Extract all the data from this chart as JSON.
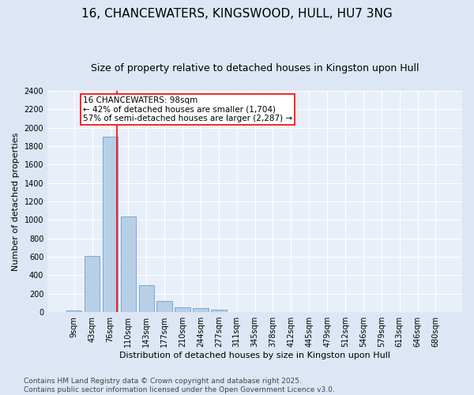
{
  "title": "16, CHANCEWATERS, KINGSWOOD, HULL, HU7 3NG",
  "subtitle": "Size of property relative to detached houses in Kingston upon Hull",
  "xlabel": "Distribution of detached houses by size in Kingston upon Hull",
  "ylabel": "Number of detached properties",
  "footnote": "Contains HM Land Registry data © Crown copyright and database right 2025.\nContains public sector information licensed under the Open Government Licence v3.0.",
  "bar_labels": [
    "9sqm",
    "43sqm",
    "76sqm",
    "110sqm",
    "143sqm",
    "177sqm",
    "210sqm",
    "244sqm",
    "277sqm",
    "311sqm",
    "345sqm",
    "378sqm",
    "412sqm",
    "445sqm",
    "479sqm",
    "512sqm",
    "546sqm",
    "579sqm",
    "613sqm",
    "646sqm",
    "680sqm"
  ],
  "bar_values": [
    20,
    610,
    1900,
    1040,
    295,
    120,
    50,
    40,
    25,
    0,
    0,
    0,
    0,
    0,
    0,
    0,
    0,
    0,
    0,
    0,
    0
  ],
  "bar_color": "#b8cfe8",
  "bar_edge_color": "#6b9fc8",
  "annotation_text": "16 CHANCEWATERS: 98sqm\n← 42% of detached houses are smaller (1,704)\n57% of semi-detached houses are larger (2,287) →",
  "vline_x": 2.35,
  "vline_color": "red",
  "ylim": [
    0,
    2400
  ],
  "yticks": [
    0,
    200,
    400,
    600,
    800,
    1000,
    1200,
    1400,
    1600,
    1800,
    2000,
    2200,
    2400
  ],
  "bg_color": "#dce6f5",
  "plot_bg_color": "#e8eff8",
  "grid_color": "white",
  "title_fontsize": 11,
  "subtitle_fontsize": 9,
  "xlabel_fontsize": 8,
  "ylabel_fontsize": 8,
  "tick_fontsize": 7,
  "annotation_fontsize": 7.5,
  "footnote_fontsize": 6.5
}
